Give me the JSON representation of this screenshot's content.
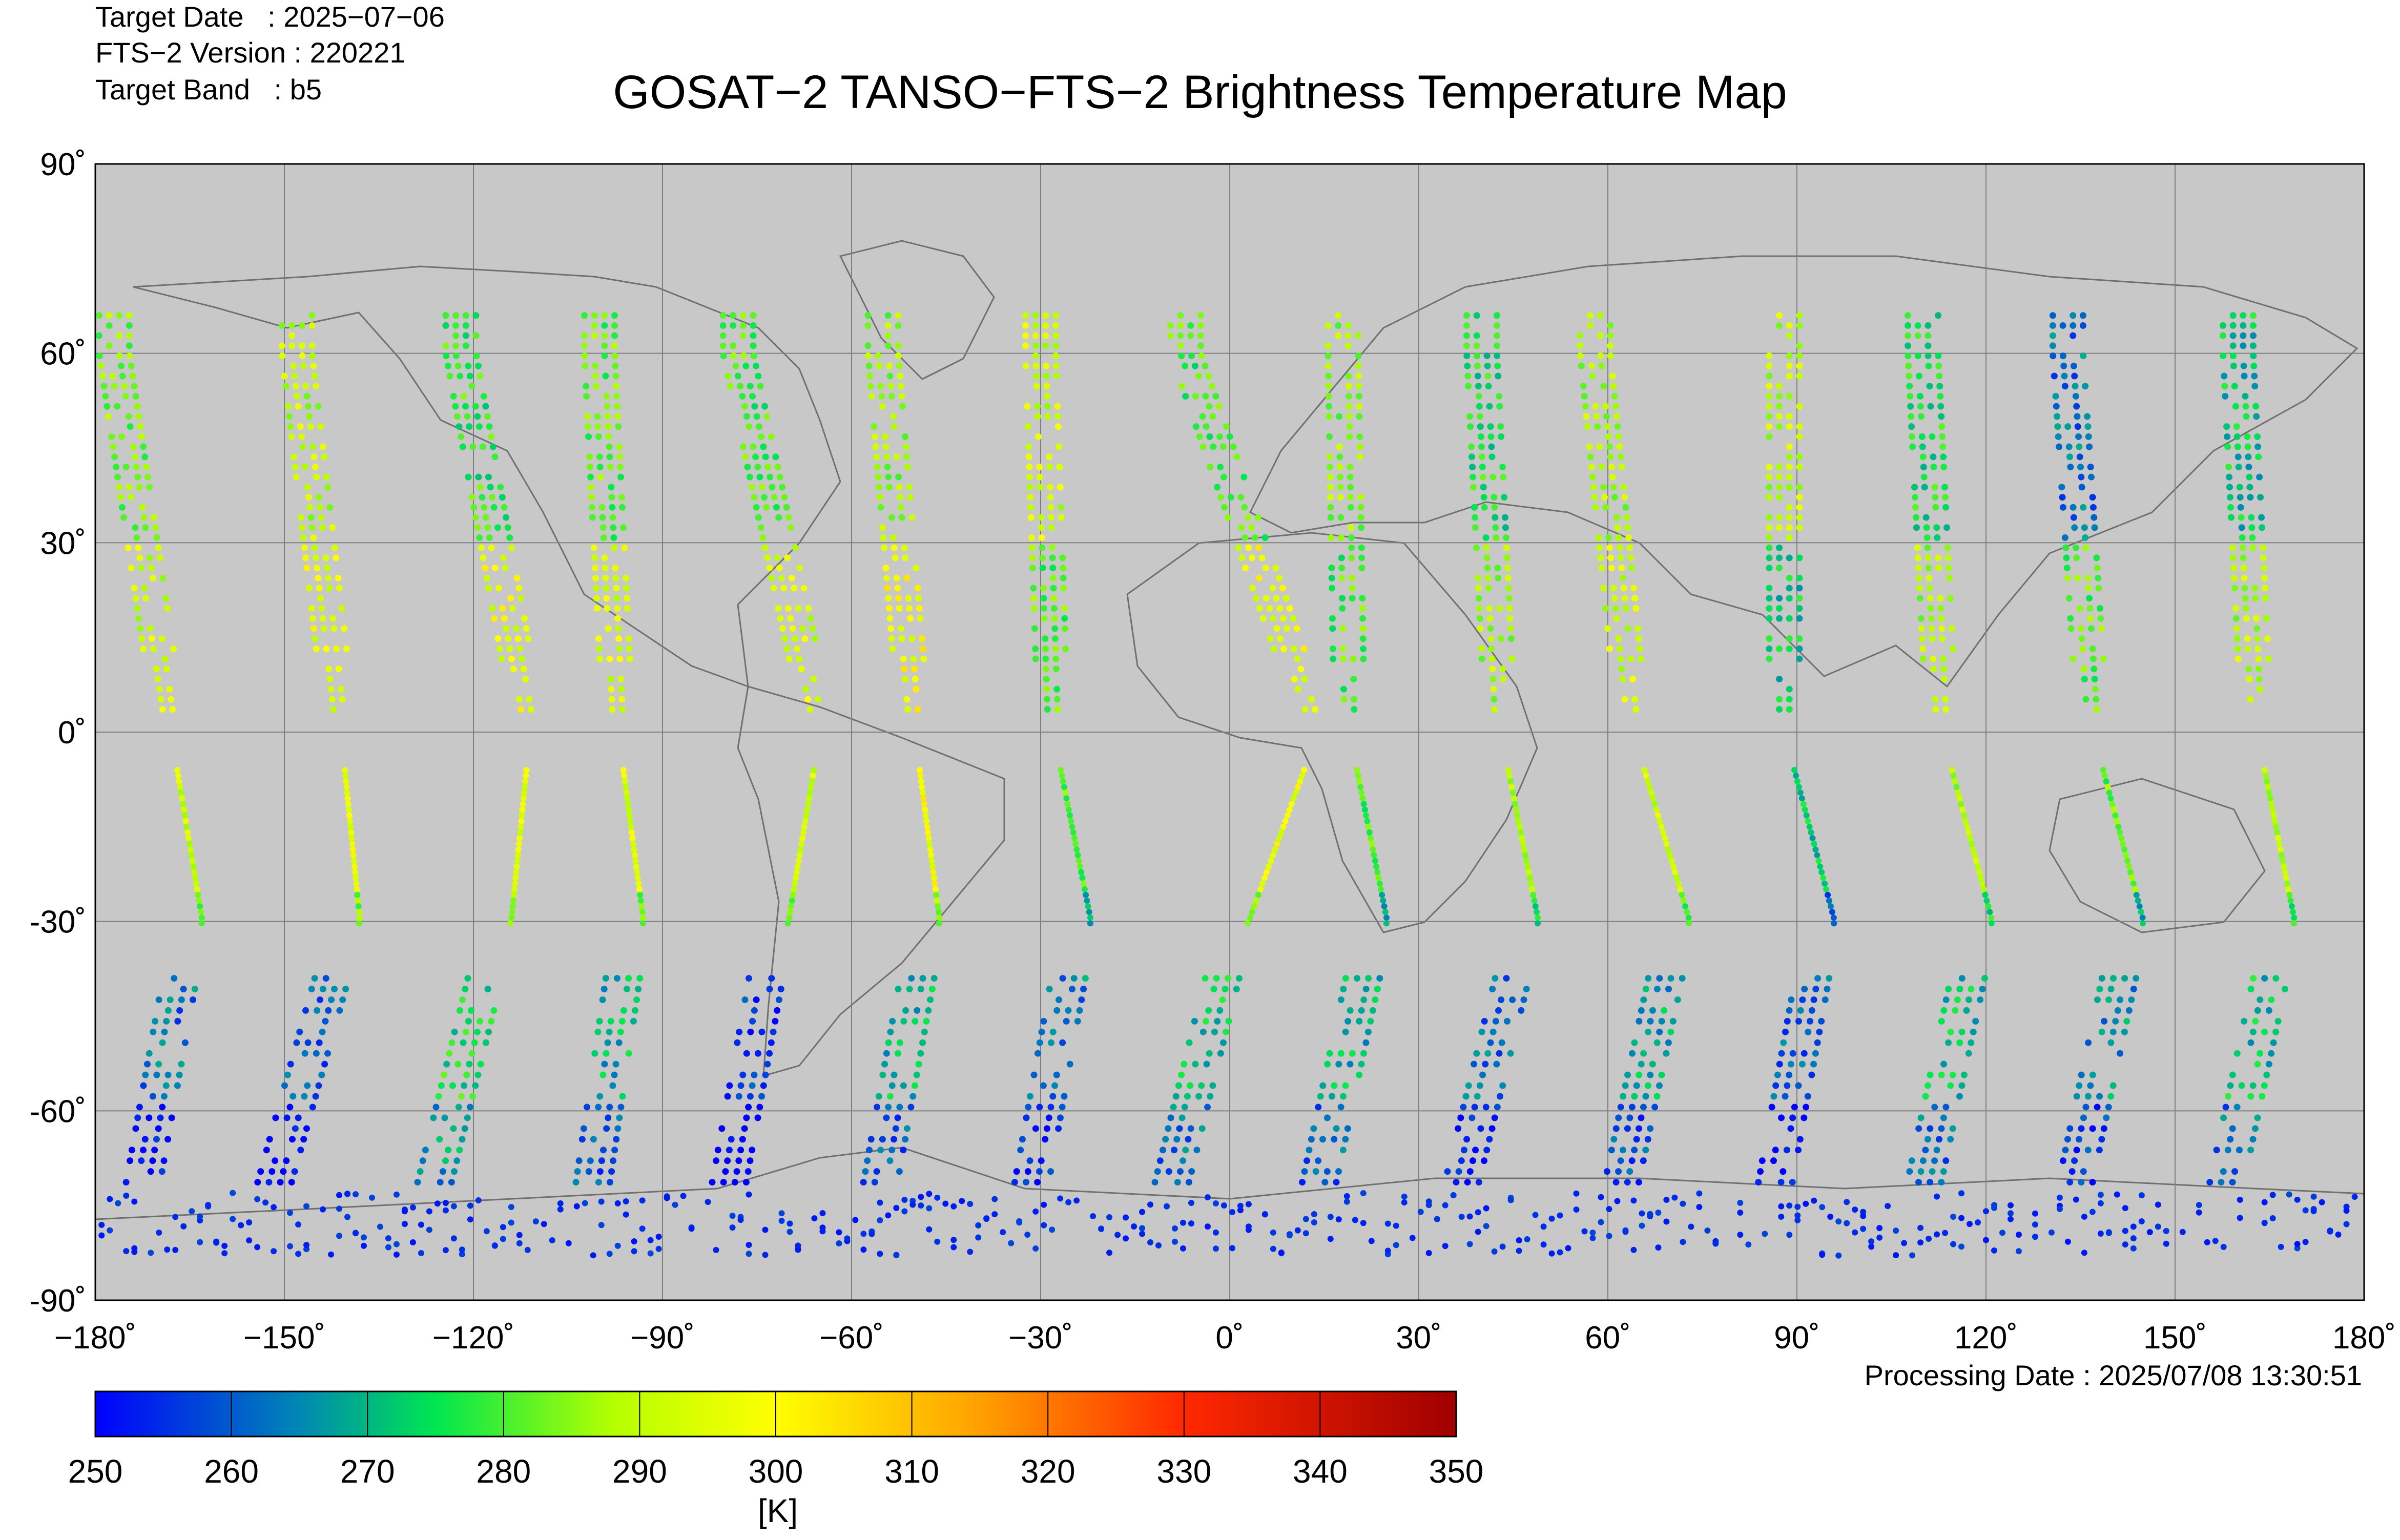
{
  "header": {
    "target_date": "Target Date   : 2025−07−06",
    "fts_version": "FTS−2 Version : 220221",
    "target_band": "Target Band   : b5"
  },
  "title": "GOSAT−2 TANSO−FTS−2 Brightness Temperature Map",
  "processing_date": "Processing Date : 2025/07/08 13:30:51",
  "colorbar": {
    "unit": "[K]",
    "ticks": [
      "250",
      "260",
      "270",
      "280",
      "290",
      "300",
      "310",
      "320",
      "330",
      "340",
      "350"
    ],
    "min": 250,
    "max": 350,
    "stops": [
      {
        "v": 250,
        "c": "#0000ff"
      },
      {
        "v": 265,
        "c": "#0087b4"
      },
      {
        "v": 275,
        "c": "#00e650"
      },
      {
        "v": 288,
        "c": "#b4ff00"
      },
      {
        "v": 300,
        "c": "#ffff00"
      },
      {
        "v": 315,
        "c": "#ffa000"
      },
      {
        "v": 330,
        "c": "#ff2800"
      },
      {
        "v": 350,
        "c": "#a00000"
      }
    ]
  },
  "map": {
    "background": "#c8c8c8",
    "grid": true,
    "x_ticks": [
      "−180˚",
      "−150˚",
      "−120˚",
      "−90˚",
      "−60˚",
      "−30˚",
      "0˚",
      "30˚",
      "60˚",
      "90˚",
      "120˚",
      "150˚",
      "180˚"
    ],
    "y_ticks": [
      "90˚",
      "60˚",
      "30˚",
      "0˚",
      "-30˚",
      "-60˚",
      "-90˚"
    ]
  },
  "chart_data": {
    "type": "scatter",
    "title": "GOSAT−2 TANSO−FTS−2 Brightness Temperature Map",
    "xlim": [
      -180,
      180
    ],
    "ylim": [
      -90,
      90
    ],
    "colorbar_range": [
      250,
      350
    ],
    "colorbar_label": "[K]",
    "orbit_tracks": [
      {
        "lon_at_60N": -177,
        "lon_at_equator": -168,
        "lon_at_30S": -163,
        "lon_at_60S": -175,
        "t_north": 284,
        "t_tropics": 292,
        "t_south": 262
      },
      {
        "lon_at_60N": -148,
        "lon_at_equator": -141,
        "lon_at_30S": -138,
        "lon_at_60S": -153,
        "t_north": 290,
        "t_tropics": 296,
        "t_south": 260
      },
      {
        "lon_at_60N": -122,
        "lon_at_equator": -111,
        "lon_at_30S": -114,
        "lon_at_60S": -128,
        "t_north": 278,
        "t_tropics": 296,
        "t_south": 276
      },
      {
        "lon_at_60N": -100,
        "lon_at_equator": -97,
        "lon_at_30S": -93,
        "lon_at_60S": -104,
        "t_north": 282,
        "t_tropics": 294,
        "t_south": 270
      },
      {
        "lon_at_60N": -78,
        "lon_at_equator": -65,
        "lon_at_30S": -70,
        "lon_at_60S": -82,
        "t_north": 280,
        "t_tropics": 293,
        "t_south": 256
      },
      {
        "lon_at_60N": -55,
        "lon_at_equator": -50,
        "lon_at_30S": -46,
        "lon_at_60S": -58,
        "t_north": 286,
        "t_tropics": 298,
        "t_south": 270
      },
      {
        "lon_at_60N": -30,
        "lon_at_equator": -28,
        "lon_at_30S": -22,
        "lon_at_60S": -34,
        "t_north": 292,
        "t_tropics": 281,
        "t_south": 264
      },
      {
        "lon_at_60N": -7,
        "lon_at_equator": 14,
        "lon_at_30S": 3,
        "lon_at_60S": -11,
        "t_north": 280,
        "t_tropics": 297,
        "t_south": 272
      },
      {
        "lon_at_60N": 18,
        "lon_at_equator": 19,
        "lon_at_30S": 25,
        "lon_at_60S": 12,
        "t_north": 286,
        "t_tropics": 280,
        "t_south": 270
      },
      {
        "lon_at_60N": 40,
        "lon_at_equator": 43,
        "lon_at_30S": 49,
        "lon_at_60S": 35,
        "t_north": 276,
        "t_tropics": 288,
        "t_south": 262
      },
      {
        "lon_at_60N": 58,
        "lon_at_equator": 64,
        "lon_at_30S": 73,
        "lon_at_60S": 60,
        "t_north": 288,
        "t_tropics": 292,
        "t_south": 268
      },
      {
        "lon_at_60N": 88,
        "lon_at_equator": 88,
        "lon_at_30S": 96,
        "lon_at_60S": 84,
        "t_north": 290,
        "t_tropics": 272,
        "t_south": 260
      },
      {
        "lon_at_60N": 110,
        "lon_at_equator": 113,
        "lon_at_30S": 121,
        "lon_at_60S": 108,
        "t_north": 276,
        "t_tropics": 288,
        "t_south": 272
      },
      {
        "lon_at_60N": 133,
        "lon_at_equator": 137,
        "lon_at_30S": 145,
        "lon_at_60S": 132,
        "t_north": 262,
        "t_tropics": 282,
        "t_south": 266
      },
      {
        "lon_at_60N": 160,
        "lon_at_equator": 163,
        "lon_at_30S": 169,
        "lon_at_60S": 156,
        "t_north": 272,
        "t_tropics": 289,
        "t_south": 272
      }
    ],
    "antarctic_band": {
      "lat_range": [
        -83,
        -73
      ],
      "t": 252
    }
  }
}
